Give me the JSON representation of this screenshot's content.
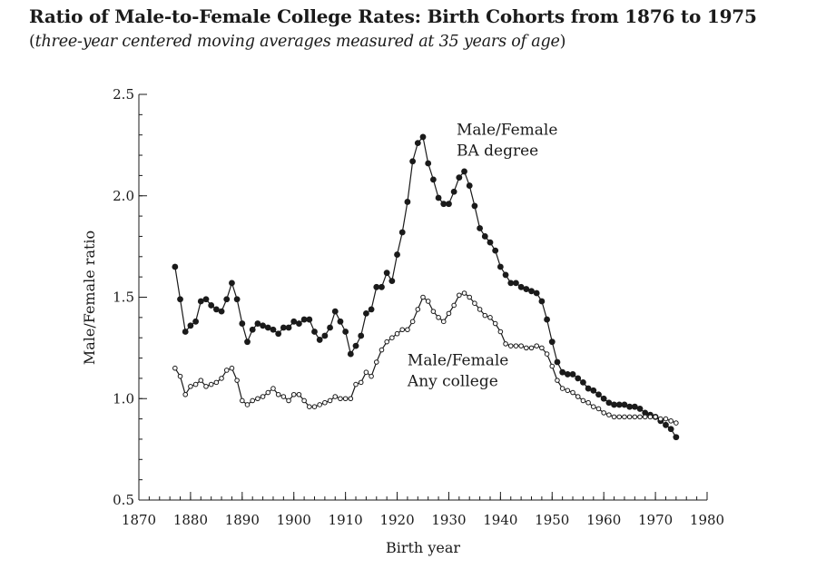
{
  "title": "Ratio of Male-to-Female College Rates: Birth Cohorts from 1876 to 1975",
  "subtitle_open": "(",
  "subtitle_text": "three-year centered moving averages measured at 35 years of age",
  "subtitle_close": ")",
  "chart_data": {
    "type": "line",
    "xlabel": "Birth year",
    "ylabel": "Male/Female ratio",
    "xlim": [
      1870,
      1980
    ],
    "ylim": [
      0.5,
      2.5
    ],
    "x_ticks": [
      1870,
      1880,
      1890,
      1900,
      1910,
      1920,
      1930,
      1940,
      1950,
      1960,
      1970,
      1980
    ],
    "y_ticks": [
      0.5,
      1.0,
      1.5,
      2.0,
      2.5
    ],
    "x_tick_labels": [
      "1870",
      "1880",
      "1890",
      "1900",
      "1910",
      "1920",
      "1930",
      "1940",
      "1950",
      "1960",
      "1970",
      "1980"
    ],
    "y_tick_labels": [
      "0.5",
      "1.0",
      "1.5",
      "2.0",
      "2.5"
    ],
    "grid": false,
    "colors": {
      "line": "#1a1a1a",
      "ba_marker": "#1a1a1a",
      "any_marker": "#ffffff"
    },
    "series": [
      {
        "label_lines": [
          "Male/Female",
          "BA degree"
        ],
        "label_x": 1931.5,
        "label_y": 2.3,
        "marker": "filled",
        "points": [
          [
            1877,
            1.65
          ],
          [
            1878,
            1.49
          ],
          [
            1879,
            1.33
          ],
          [
            1880,
            1.36
          ],
          [
            1881,
            1.38
          ],
          [
            1882,
            1.48
          ],
          [
            1883,
            1.49
          ],
          [
            1884,
            1.46
          ],
          [
            1885,
            1.44
          ],
          [
            1886,
            1.43
          ],
          [
            1887,
            1.49
          ],
          [
            1888,
            1.57
          ],
          [
            1889,
            1.49
          ],
          [
            1890,
            1.37
          ],
          [
            1891,
            1.28
          ],
          [
            1892,
            1.34
          ],
          [
            1893,
            1.37
          ],
          [
            1894,
            1.36
          ],
          [
            1895,
            1.35
          ],
          [
            1896,
            1.34
          ],
          [
            1897,
            1.32
          ],
          [
            1898,
            1.35
          ],
          [
            1899,
            1.35
          ],
          [
            1900,
            1.38
          ],
          [
            1901,
            1.37
          ],
          [
            1902,
            1.39
          ],
          [
            1903,
            1.39
          ],
          [
            1904,
            1.33
          ],
          [
            1905,
            1.29
          ],
          [
            1906,
            1.31
          ],
          [
            1907,
            1.35
          ],
          [
            1908,
            1.43
          ],
          [
            1909,
            1.38
          ],
          [
            1910,
            1.33
          ],
          [
            1911,
            1.22
          ],
          [
            1912,
            1.26
          ],
          [
            1913,
            1.31
          ],
          [
            1914,
            1.42
          ],
          [
            1915,
            1.44
          ],
          [
            1916,
            1.55
          ],
          [
            1917,
            1.55
          ],
          [
            1918,
            1.62
          ],
          [
            1919,
            1.58
          ],
          [
            1920,
            1.71
          ],
          [
            1921,
            1.82
          ],
          [
            1922,
            1.97
          ],
          [
            1923,
            2.17
          ],
          [
            1924,
            2.26
          ],
          [
            1925,
            2.29
          ],
          [
            1926,
            2.16
          ],
          [
            1927,
            2.08
          ],
          [
            1928,
            1.99
          ],
          [
            1929,
            1.96
          ],
          [
            1930,
            1.96
          ],
          [
            1931,
            2.02
          ],
          [
            1932,
            2.09
          ],
          [
            1933,
            2.12
          ],
          [
            1934,
            2.05
          ],
          [
            1935,
            1.95
          ],
          [
            1936,
            1.84
          ],
          [
            1937,
            1.8
          ],
          [
            1938,
            1.77
          ],
          [
            1939,
            1.73
          ],
          [
            1940,
            1.65
          ],
          [
            1941,
            1.61
          ],
          [
            1942,
            1.57
          ],
          [
            1943,
            1.57
          ],
          [
            1944,
            1.55
          ],
          [
            1945,
            1.54
          ],
          [
            1946,
            1.53
          ],
          [
            1947,
            1.52
          ],
          [
            1948,
            1.48
          ],
          [
            1949,
            1.39
          ],
          [
            1950,
            1.28
          ],
          [
            1951,
            1.18
          ],
          [
            1952,
            1.13
          ],
          [
            1953,
            1.12
          ],
          [
            1954,
            1.12
          ],
          [
            1955,
            1.1
          ],
          [
            1956,
            1.08
          ],
          [
            1957,
            1.05
          ],
          [
            1958,
            1.04
          ],
          [
            1959,
            1.02
          ],
          [
            1960,
            1.0
          ],
          [
            1961,
            0.98
          ],
          [
            1962,
            0.97
          ],
          [
            1963,
            0.97
          ],
          [
            1964,
            0.97
          ],
          [
            1965,
            0.96
          ],
          [
            1966,
            0.96
          ],
          [
            1967,
            0.95
          ],
          [
            1968,
            0.93
          ],
          [
            1969,
            0.92
          ],
          [
            1970,
            0.91
          ],
          [
            1971,
            0.89
          ],
          [
            1972,
            0.87
          ],
          [
            1973,
            0.85
          ],
          [
            1974,
            0.81
          ]
        ]
      },
      {
        "label_lines": [
          "Male/Female",
          "Any college"
        ],
        "label_x": 1922,
        "label_y": 1.165,
        "marker": "open",
        "points": [
          [
            1877,
            1.15
          ],
          [
            1878,
            1.11
          ],
          [
            1879,
            1.02
          ],
          [
            1880,
            1.06
          ],
          [
            1881,
            1.07
          ],
          [
            1882,
            1.09
          ],
          [
            1883,
            1.06
          ],
          [
            1884,
            1.07
          ],
          [
            1885,
            1.08
          ],
          [
            1886,
            1.1
          ],
          [
            1887,
            1.14
          ],
          [
            1888,
            1.15
          ],
          [
            1889,
            1.09
          ],
          [
            1890,
            0.99
          ],
          [
            1891,
            0.97
          ],
          [
            1892,
            0.99
          ],
          [
            1893,
            1.0
          ],
          [
            1894,
            1.01
          ],
          [
            1895,
            1.03
          ],
          [
            1896,
            1.05
          ],
          [
            1897,
            1.02
          ],
          [
            1898,
            1.01
          ],
          [
            1899,
            0.99
          ],
          [
            1900,
            1.02
          ],
          [
            1901,
            1.02
          ],
          [
            1902,
            0.99
          ],
          [
            1903,
            0.96
          ],
          [
            1904,
            0.96
          ],
          [
            1905,
            0.97
          ],
          [
            1906,
            0.98
          ],
          [
            1907,
            0.99
          ],
          [
            1908,
            1.01
          ],
          [
            1909,
            1.0
          ],
          [
            1910,
            1.0
          ],
          [
            1911,
            1.0
          ],
          [
            1912,
            1.07
          ],
          [
            1913,
            1.08
          ],
          [
            1914,
            1.13
          ],
          [
            1915,
            1.11
          ],
          [
            1916,
            1.18
          ],
          [
            1917,
            1.24
          ],
          [
            1918,
            1.28
          ],
          [
            1919,
            1.3
          ],
          [
            1920,
            1.32
          ],
          [
            1921,
            1.34
          ],
          [
            1922,
            1.34
          ],
          [
            1923,
            1.38
          ],
          [
            1924,
            1.44
          ],
          [
            1925,
            1.5
          ],
          [
            1926,
            1.48
          ],
          [
            1927,
            1.43
          ],
          [
            1928,
            1.4
          ],
          [
            1929,
            1.38
          ],
          [
            1930,
            1.42
          ],
          [
            1931,
            1.46
          ],
          [
            1932,
            1.51
          ],
          [
            1933,
            1.52
          ],
          [
            1934,
            1.5
          ],
          [
            1935,
            1.47
          ],
          [
            1936,
            1.44
          ],
          [
            1937,
            1.41
          ],
          [
            1938,
            1.4
          ],
          [
            1939,
            1.37
          ],
          [
            1940,
            1.33
          ],
          [
            1941,
            1.27
          ],
          [
            1942,
            1.26
          ],
          [
            1943,
            1.26
          ],
          [
            1944,
            1.26
          ],
          [
            1945,
            1.25
          ],
          [
            1946,
            1.25
          ],
          [
            1947,
            1.26
          ],
          [
            1948,
            1.25
          ],
          [
            1949,
            1.22
          ],
          [
            1950,
            1.16
          ],
          [
            1951,
            1.09
          ],
          [
            1952,
            1.05
          ],
          [
            1953,
            1.04
          ],
          [
            1954,
            1.03
          ],
          [
            1955,
            1.01
          ],
          [
            1956,
            0.99
          ],
          [
            1957,
            0.98
          ],
          [
            1958,
            0.96
          ],
          [
            1959,
            0.95
          ],
          [
            1960,
            0.93
          ],
          [
            1961,
            0.92
          ],
          [
            1962,
            0.91
          ],
          [
            1963,
            0.91
          ],
          [
            1964,
            0.91
          ],
          [
            1965,
            0.91
          ],
          [
            1966,
            0.91
          ],
          [
            1967,
            0.91
          ],
          [
            1968,
            0.91
          ],
          [
            1969,
            0.91
          ],
          [
            1970,
            0.91
          ],
          [
            1971,
            0.9
          ],
          [
            1972,
            0.9
          ],
          [
            1973,
            0.89
          ],
          [
            1974,
            0.88
          ]
        ]
      }
    ]
  }
}
